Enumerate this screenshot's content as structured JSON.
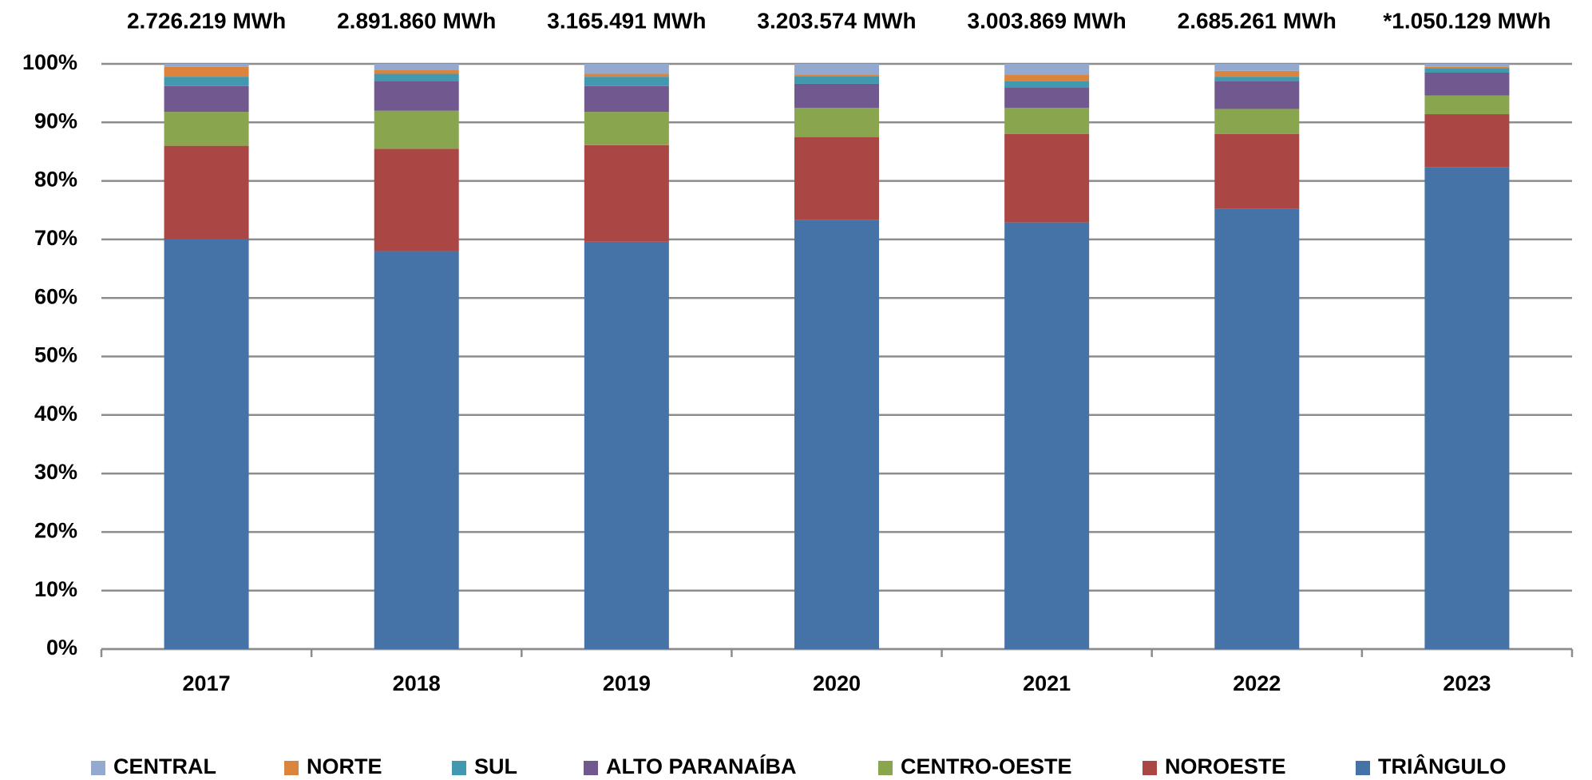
{
  "chart_data": {
    "type": "stacked_bar_100",
    "annotations": [
      "2.726.219 MWh",
      "2.891.860 MWh",
      "3.165.491 MWh",
      "3.203.574 MWh",
      "3.003.869 MWh",
      "2.685.261 MWh",
      "*1.050.129 MWh"
    ],
    "categories": [
      "2017",
      "2018",
      "2019",
      "2020",
      "2021",
      "2022",
      "2023"
    ],
    "series": [
      {
        "name": "CENTRAL",
        "color": "#93a9cf",
        "values": [
          0.5,
          1.0,
          1.7,
          1.8,
          1.8,
          1.2,
          0.5
        ]
      },
      {
        "name": "NORTE",
        "color": "#db843d",
        "values": [
          1.7,
          0.7,
          0.5,
          0.3,
          1.1,
          1.0,
          0.2
        ]
      },
      {
        "name": "SUL",
        "color": "#4198af",
        "values": [
          1.6,
          1.3,
          1.6,
          1.3,
          1.1,
          0.8,
          0.8
        ]
      },
      {
        "name": "ALTO PARANAÍBA",
        "color": "#71588f",
        "values": [
          4.4,
          5.0,
          4.4,
          4.1,
          3.5,
          4.7,
          3.9
        ]
      },
      {
        "name": "CENTRO-OESTE",
        "color": "#89a54e",
        "values": [
          5.8,
          6.5,
          5.7,
          5.0,
          4.5,
          4.3,
          3.2
        ]
      },
      {
        "name": "NOROESTE",
        "color": "#aa4643",
        "values": [
          16.0,
          17.5,
          16.5,
          14.2,
          15.1,
          12.8,
          9.1
        ]
      },
      {
        "name": "TRIÂNGULO",
        "color": "#4572a7",
        "values": [
          70.0,
          68.0,
          69.6,
          73.3,
          72.9,
          75.2,
          82.3
        ]
      }
    ],
    "ylim": [
      0,
      100
    ],
    "yticks": [
      {
        "value": 0,
        "label": "0%"
      },
      {
        "value": 10,
        "label": "10%"
      },
      {
        "value": 20,
        "label": "20%"
      },
      {
        "value": 30,
        "label": "30%"
      },
      {
        "value": 40,
        "label": "40%"
      },
      {
        "value": 50,
        "label": "50%"
      },
      {
        "value": 60,
        "label": "60%"
      },
      {
        "value": 70,
        "label": "70%"
      },
      {
        "value": 80,
        "label": "80%"
      },
      {
        "value": 90,
        "label": "90%"
      },
      {
        "value": 100,
        "label": "100%"
      }
    ],
    "grid": true,
    "legend": "bottom"
  }
}
